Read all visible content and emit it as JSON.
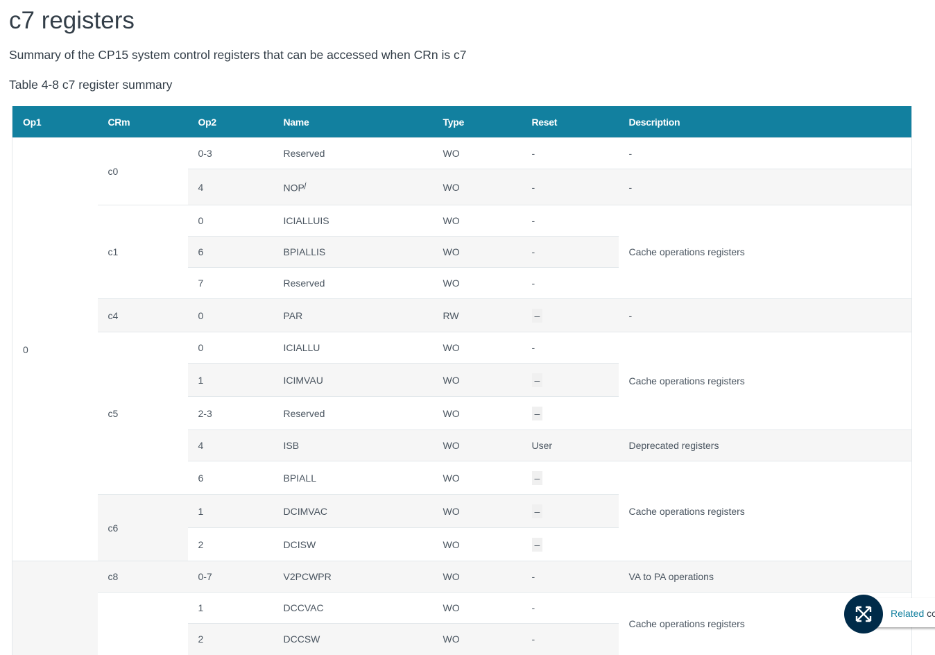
{
  "title": "c7 registers",
  "subtitle": "Summary of the CP15 system control registers that can be accessed when CRn is c7",
  "caption": "Table 4-8 c7 register summary",
  "headers": [
    "Op1",
    "CRm",
    "Op2",
    "Name",
    "Type",
    "Reset",
    "Description"
  ],
  "op1": [
    "0",
    ""
  ],
  "crm": [
    "c0",
    "c1",
    "c4",
    "c5",
    "c6",
    "c8",
    ""
  ],
  "rows": [
    {
      "op2": "0-3",
      "name": "Reserved",
      "type": "WO",
      "reset": "-"
    },
    {
      "op2": "4",
      "name": "NOP",
      "sup": "j",
      "type": "WO",
      "reset": "-"
    },
    {
      "op2": "0",
      "name": "ICIALLUIS",
      "type": "WO",
      "reset": "-"
    },
    {
      "op2": "6",
      "name": "BPIALLIS",
      "type": "WO",
      "reset": "-"
    },
    {
      "op2": "7",
      "name": "Reserved",
      "type": "WO",
      "reset": "-"
    },
    {
      "op2": "0",
      "name": "PAR",
      "type": "RW",
      "reset": "–"
    },
    {
      "op2": "0",
      "name": "ICIALLU",
      "type": "WO",
      "reset": "-"
    },
    {
      "op2": "1",
      "name": "ICIMVAU",
      "type": "WO",
      "reset": "–"
    },
    {
      "op2": "2-3",
      "name": "Reserved",
      "type": "WO",
      "reset": "–"
    },
    {
      "op2": "4",
      "name": "ISB",
      "type": "WO",
      "reset": "User"
    },
    {
      "op2": "6",
      "name": "BPIALL",
      "type": "WO",
      "reset": "–"
    },
    {
      "op2": "1",
      "name": "DCIMVAC",
      "type": "WO",
      "reset": "–"
    },
    {
      "op2": "2",
      "name": "DCISW",
      "type": "WO",
      "reset": "–"
    },
    {
      "op2": "0-7",
      "name": "V2PCWPR",
      "type": "WO",
      "reset": "-"
    },
    {
      "op2": "1",
      "name": "DCCVAC",
      "type": "WO",
      "reset": "-"
    },
    {
      "op2": "2",
      "name": "DCCSW",
      "type": "WO",
      "reset": "-"
    }
  ],
  "desc": [
    "-",
    "-",
    "Cache operations registers",
    "-",
    "Cache operations registers",
    "Deprecated registers",
    "Cache operations registers",
    "VA to PA operations",
    "Cache operations registers"
  ],
  "related": {
    "highlight": "Related",
    "rest": " content"
  },
  "colors": {
    "header": "#12809f",
    "fab": "#002b49"
  }
}
